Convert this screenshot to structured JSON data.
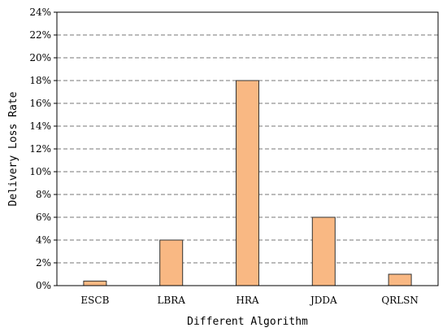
{
  "chart_data": {
    "type": "bar",
    "title": "",
    "xlabel": "Different Algorithm",
    "ylabel": "Delivery Loss Rate",
    "categories": [
      "ESCB",
      "LBRA",
      "HRA",
      "JDDA",
      "QRLSN"
    ],
    "values": [
      0.4,
      4,
      18,
      6,
      1
    ],
    "ylim": [
      0,
      24
    ],
    "yticks": [
      0,
      2,
      4,
      6,
      8,
      10,
      12,
      14,
      16,
      18,
      20,
      22,
      24
    ],
    "ytick_labels": [
      "0%",
      "2%",
      "4%",
      "6%",
      "8%",
      "10%",
      "12%",
      "14%",
      "16%",
      "18%",
      "20%",
      "22%",
      "24%"
    ],
    "unit": "%",
    "grid": "horizontal-dashed",
    "legend": "none",
    "bar_color": "#f9b883",
    "bar_edge_color": "#333333"
  }
}
